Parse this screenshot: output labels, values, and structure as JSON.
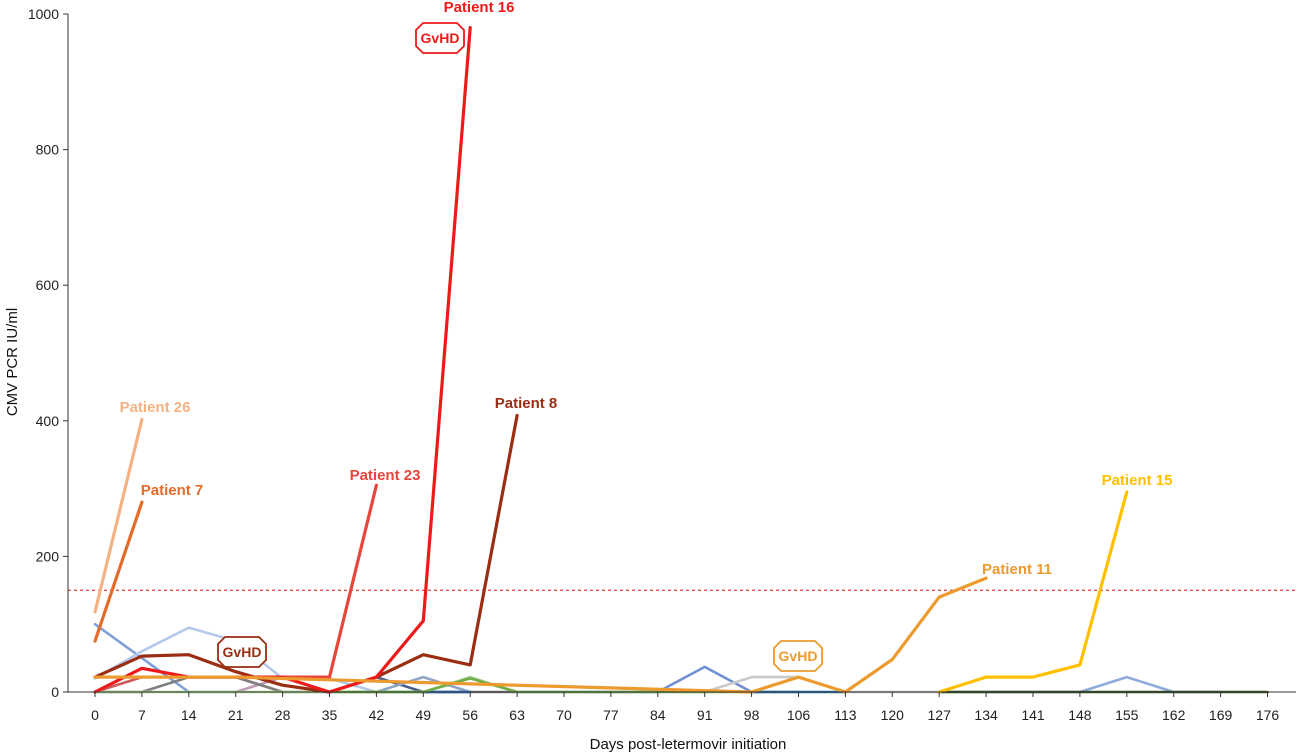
{
  "chart_data": {
    "type": "line",
    "xlabel": "Days post-letermovir initiation",
    "ylabel": "CMV PCR IU/ml",
    "ylim": [
      0,
      1000
    ],
    "yticks": [
      0,
      200,
      400,
      600,
      800,
      1000
    ],
    "categories": [
      "0",
      "7",
      "14",
      "21",
      "28",
      "35",
      "42",
      "49",
      "56",
      "63",
      "70",
      "77",
      "84",
      "91",
      "98",
      "106",
      "113",
      "120",
      "127",
      "134",
      "141",
      "148",
      "155",
      "162",
      "169",
      "176"
    ],
    "threshold": {
      "value": 150,
      "color": "#e05050"
    },
    "series": [
      {
        "color": "#7f9fd8",
        "points": [
          [
            0,
            100
          ],
          [
            7,
            50
          ],
          [
            14,
            0
          ],
          [
            21,
            0
          ]
        ]
      },
      {
        "color": "#b4c8ea",
        "points": [
          [
            0,
            20
          ],
          [
            7,
            60
          ],
          [
            14,
            95
          ],
          [
            21,
            75
          ],
          [
            28,
            20
          ],
          [
            35,
            20
          ],
          [
            42,
            0
          ]
        ]
      },
      {
        "color": "#cc5a5a",
        "points": [
          [
            0,
            0
          ],
          [
            7,
            22
          ],
          [
            14,
            22
          ],
          [
            21,
            22
          ],
          [
            28,
            0
          ]
        ]
      },
      {
        "color": "#c09ab8",
        "points": [
          [
            21,
            0
          ],
          [
            28,
            22
          ],
          [
            35,
            22
          ]
        ]
      },
      {
        "color": "#7f7f7f",
        "points": [
          [
            0,
            0
          ],
          [
            7,
            0
          ],
          [
            14,
            22
          ],
          [
            21,
            22
          ],
          [
            28,
            0
          ],
          [
            35,
            0
          ],
          [
            42,
            0
          ],
          [
            49,
            0
          ],
          [
            56,
            0
          ],
          [
            63,
            0
          ]
        ]
      },
      {
        "color": "#4a5d8c",
        "points": [
          [
            35,
            0
          ],
          [
            42,
            22
          ],
          [
            49,
            0
          ],
          [
            56,
            0
          ]
        ]
      },
      {
        "color": "#8fa5c4",
        "points": [
          [
            42,
            0
          ],
          [
            49,
            22
          ],
          [
            56,
            0
          ]
        ]
      },
      {
        "color": "#2e75c9",
        "points": [
          [
            42,
            0
          ],
          [
            49,
            0
          ],
          [
            56,
            0
          ]
        ]
      },
      {
        "color": "#6f8fd4",
        "points": [
          [
            63,
            0
          ],
          [
            70,
            0
          ],
          [
            77,
            0
          ],
          [
            84,
            0
          ],
          [
            91,
            37
          ],
          [
            98,
            0
          ],
          [
            106,
            0
          ]
        ]
      },
      {
        "color": "#c9c9c9",
        "points": [
          [
            91,
            0
          ],
          [
            98,
            22
          ],
          [
            106,
            22
          ],
          [
            113,
            0
          ]
        ]
      },
      {
        "color": "#2e75b6",
        "points": [
          [
            98,
            0
          ],
          [
            106,
            0
          ],
          [
            113,
            0
          ]
        ]
      },
      {
        "color": "#bfbfbf",
        "points": [
          [
            113,
            0
          ],
          [
            120,
            0
          ],
          [
            127,
            0
          ],
          [
            134,
            0
          ]
        ]
      },
      {
        "color": "#8faadc",
        "points": [
          [
            134,
            0
          ],
          [
            141,
            0
          ],
          [
            148,
            0
          ],
          [
            155,
            22
          ],
          [
            162,
            0
          ],
          [
            169,
            0
          ]
        ]
      },
      {
        "color": "#375623",
        "points": [
          [
            127,
            0
          ],
          [
            134,
            0
          ],
          [
            141,
            0
          ],
          [
            148,
            0
          ],
          [
            155,
            0
          ],
          [
            162,
            0
          ],
          [
            169,
            0
          ],
          [
            176,
            0
          ]
        ]
      },
      {
        "color": "#a9d18e",
        "points": [
          [
            0,
            0
          ],
          [
            7,
            0
          ],
          [
            14,
            0
          ],
          [
            21,
            0
          ],
          [
            28,
            0
          ],
          [
            35,
            0
          ],
          [
            42,
            0
          ],
          [
            49,
            0
          ],
          [
            56,
            22
          ],
          [
            63,
            0
          ]
        ]
      },
      {
        "color": "#70ad47",
        "points": [
          [
            35,
            0
          ],
          [
            42,
            0
          ],
          [
            49,
            0
          ],
          [
            56,
            20
          ],
          [
            63,
            0
          ],
          [
            70,
            0
          ],
          [
            77,
            0
          ],
          [
            84,
            0
          ],
          [
            91,
            0
          ],
          [
            98,
            0
          ]
        ]
      },
      {
        "name": "Patient 26",
        "color": "#f4b183",
        "points": [
          [
            0,
            118
          ],
          [
            7,
            402
          ]
        ]
      },
      {
        "name": "Patient 7",
        "color": "#e46c2a",
        "points": [
          [
            0,
            75
          ],
          [
            7,
            280
          ]
        ]
      },
      {
        "name": "Patient 23",
        "color": "#e8463a",
        "points": [
          [
            21,
            22
          ],
          [
            28,
            22
          ],
          [
            35,
            22
          ],
          [
            42,
            305
          ]
        ]
      },
      {
        "name": "Patient 8",
        "color": "#9b2d12",
        "points": [
          [
            0,
            22
          ],
          [
            7,
            53
          ],
          [
            14,
            55
          ],
          [
            21,
            30
          ],
          [
            28,
            10
          ],
          [
            35,
            0
          ],
          [
            42,
            22
          ],
          [
            49,
            55
          ],
          [
            56,
            40
          ],
          [
            63,
            408
          ]
        ]
      },
      {
        "name": "Patient 16",
        "color": "#ee1a1a",
        "points": [
          [
            0,
            0
          ],
          [
            7,
            35
          ],
          [
            14,
            22
          ],
          [
            21,
            22
          ],
          [
            28,
            22
          ],
          [
            35,
            0
          ],
          [
            42,
            22
          ],
          [
            49,
            105
          ],
          [
            56,
            980
          ]
        ]
      },
      {
        "name": "Patient 11",
        "color": "#ed9a2e",
        "points": [
          [
            0,
            22
          ],
          [
            7,
            22
          ],
          [
            14,
            22
          ],
          [
            21,
            22
          ],
          [
            98,
            0
          ],
          [
            106,
            22
          ],
          [
            113,
            0
          ],
          [
            120,
            48
          ],
          [
            127,
            140
          ],
          [
            134,
            168
          ]
        ]
      },
      {
        "name": "Patient 15",
        "color": "#ffc000",
        "points": [
          [
            127,
            0
          ],
          [
            134,
            22
          ],
          [
            141,
            22
          ],
          [
            148,
            40
          ],
          [
            155,
            295
          ]
        ]
      }
    ],
    "annotations": [
      {
        "text": "Patient 26",
        "color": "#f4b183"
      },
      {
        "text": "Patient 7",
        "color": "#e46c2a"
      },
      {
        "text": "Patient 23",
        "color": "#e8463a"
      },
      {
        "text": "Patient 8",
        "color": "#9b2d12"
      },
      {
        "text": "Patient 16",
        "color": "#ee1a1a"
      },
      {
        "text": "Patient 11",
        "color": "#ed9a2e"
      },
      {
        "text": "Patient 15",
        "color": "#ffc000"
      }
    ],
    "gvhd_badges": [
      {
        "text": "GvHD",
        "color": "#ee1a1a"
      },
      {
        "text": "GvHD",
        "color": "#9b2d12"
      },
      {
        "text": "GvHD",
        "color": "#ed9a2e"
      }
    ]
  }
}
